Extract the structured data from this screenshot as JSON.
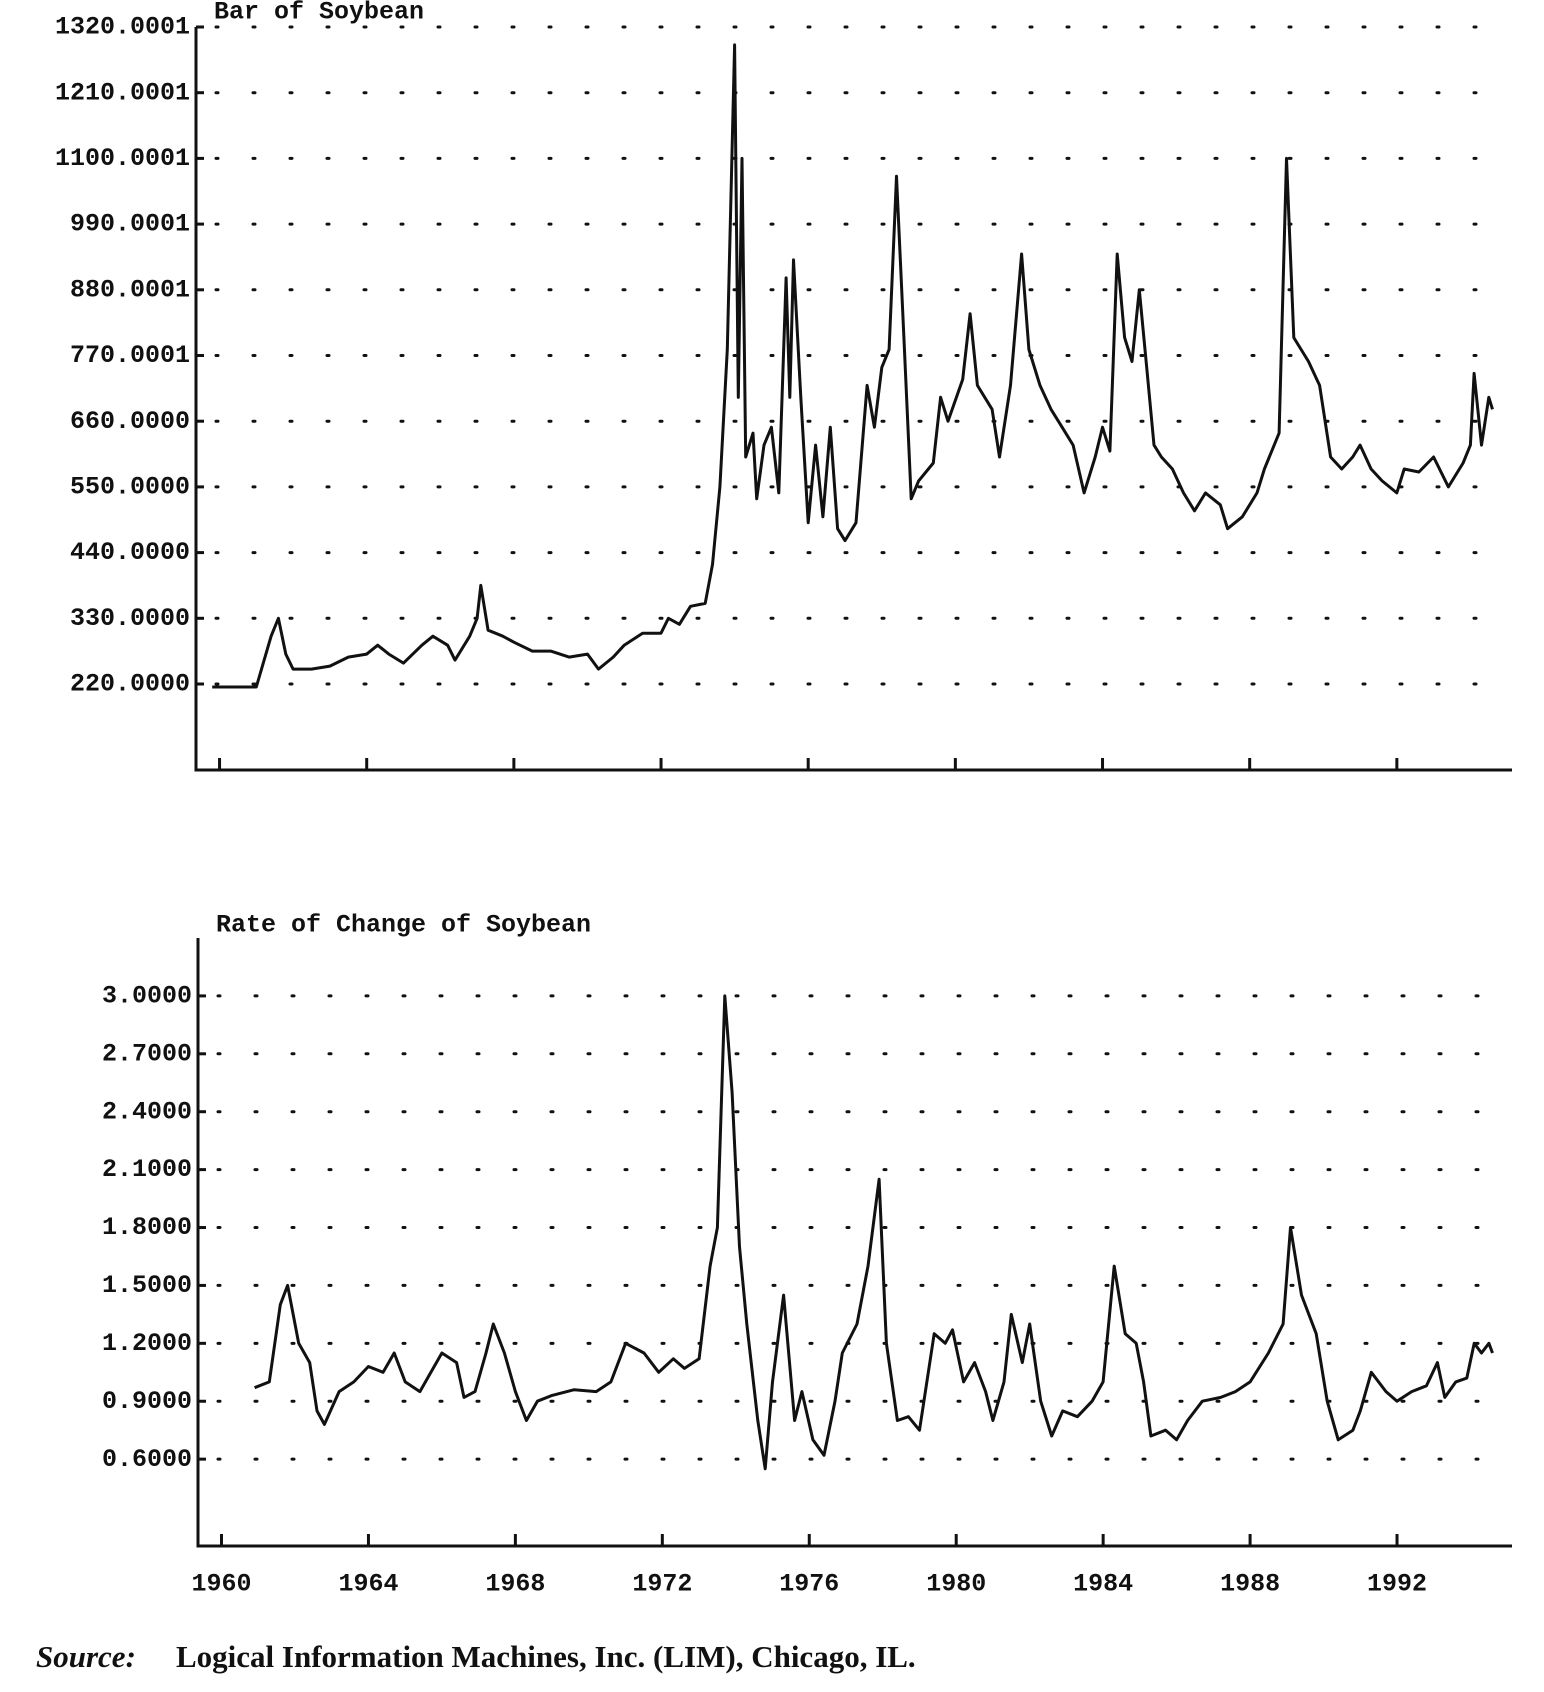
{
  "chart_data": [
    {
      "type": "line",
      "title": "Bar of Soybean",
      "xlim": [
        1959.36,
        1995.13
      ],
      "ylim": [
        76,
        1320
      ],
      "grid": true,
      "yticks": [
        {
          "value": 220,
          "label": "220.0000"
        },
        {
          "value": 330,
          "label": "330.0000"
        },
        {
          "value": 440,
          "label": "440.0000"
        },
        {
          "value": 550,
          "label": "550.0000"
        },
        {
          "value": 660,
          "label": "660.0000"
        },
        {
          "value": 770.0001,
          "label": "770.0001"
        },
        {
          "value": 880.0001,
          "label": "880.0001"
        },
        {
          "value": 990.0001,
          "label": "990.0001"
        },
        {
          "value": 1100.0001,
          "label": "1100.0001"
        },
        {
          "value": 1210.0001,
          "label": "1210.0001"
        },
        {
          "value": 1320.0001,
          "label": "1320.0001"
        }
      ],
      "x": [
        1959.8,
        1961.0,
        1961.4,
        1961.6,
        1961.8,
        1962,
        1962.5,
        1963,
        1963.5,
        1964,
        1964.3,
        1964.6,
        1965,
        1965.5,
        1965.8,
        1966.2,
        1966.4,
        1966.8,
        1967,
        1967.1,
        1967.3,
        1967.7,
        1968,
        1968.5,
        1969,
        1969.5,
        1970,
        1970.3,
        1970.7,
        1971,
        1971.5,
        1972,
        1972.2,
        1972.5,
        1972.8,
        1973.2,
        1973.4,
        1973.6,
        1973.8,
        1974.0,
        1974.1,
        1974.2,
        1974.3,
        1974.5,
        1974.6,
        1974.8,
        1975.0,
        1975.2,
        1975.4,
        1975.5,
        1975.6,
        1975.8,
        1976.0,
        1976.2,
        1976.4,
        1976.6,
        1976.8,
        1977.0,
        1977.3,
        1977.6,
        1977.8,
        1978.0,
        1978.2,
        1978.4,
        1978.6,
        1978.8,
        1979.0,
        1979.4,
        1979.6,
        1979.8,
        1980.2,
        1980.4,
        1980.6,
        1981.0,
        1981.2,
        1981.5,
        1981.8,
        1982.0,
        1982.3,
        1982.6,
        1982.9,
        1983.2,
        1983.5,
        1983.8,
        1984.0,
        1984.2,
        1984.4,
        1984.6,
        1984.8,
        1985.0,
        1985.2,
        1985.4,
        1985.6,
        1985.9,
        1986.2,
        1986.5,
        1986.8,
        1987.2,
        1987.4,
        1987.8,
        1988.2,
        1988.4,
        1988.8,
        1989.0,
        1989.2,
        1989.6,
        1989.9,
        1990.2,
        1990.5,
        1990.8,
        1991.0,
        1991.3,
        1991.6,
        1992.0,
        1992.2,
        1992.6,
        1993.0,
        1993.4,
        1993.8,
        1994.0,
        1994.1,
        1994.3,
        1994.5,
        1994.6
      ],
      "series": [
        {
          "color": "#111111",
          "values": [
            215,
            215,
            300,
            330,
            270,
            245,
            245,
            250,
            265,
            270,
            285,
            270,
            255,
            285,
            300,
            285,
            260,
            300,
            330,
            385,
            310,
            300,
            290,
            275,
            275,
            265,
            270,
            245,
            265,
            285,
            305,
            305,
            330,
            320,
            350,
            355,
            420,
            550,
            780,
            1290,
            700,
            1100,
            600,
            640,
            530,
            620,
            650,
            540,
            900,
            700,
            930,
            700,
            490,
            620,
            500,
            650,
            480,
            460,
            490,
            720,
            650,
            750,
            780,
            1070,
            800,
            530,
            560,
            590,
            700,
            660,
            730,
            840,
            720,
            680,
            600,
            720,
            940,
            780,
            720,
            680,
            650,
            620,
            540,
            600,
            650,
            610,
            940,
            800,
            760,
            880,
            750,
            620,
            600,
            580,
            540,
            510,
            540,
            520,
            480,
            500,
            540,
            580,
            640,
            1100,
            800,
            760,
            720,
            600,
            580,
            600,
            620,
            580,
            560,
            540,
            580,
            575,
            600,
            550,
            590,
            620,
            740,
            620,
            700,
            680
          ]
        }
      ]
    },
    {
      "type": "line",
      "title": "Rate of Change of Soybean",
      "xlim": [
        1959.36,
        1995.13
      ],
      "ylim": [
        0.15,
        3.3
      ],
      "grid": true,
      "xticks": [
        1960,
        1964,
        1968,
        1972,
        1976,
        1980,
        1984,
        1988,
        1992
      ],
      "yticks": [
        {
          "value": 0.6,
          "label": "0.6000"
        },
        {
          "value": 0.9,
          "label": "0.9000"
        },
        {
          "value": 1.2,
          "label": "1.2000"
        },
        {
          "value": 1.5,
          "label": "1.5000"
        },
        {
          "value": 1.8,
          "label": "1.8000"
        },
        {
          "value": 2.1,
          "label": "2.1000"
        },
        {
          "value": 2.4,
          "label": "2.4000"
        },
        {
          "value": 2.7,
          "label": "2.7000"
        },
        {
          "value": 3.0,
          "label": "3.0000"
        }
      ],
      "x": [
        1960.9,
        1961.3,
        1961.6,
        1961.8,
        1962.1,
        1962.4,
        1962.6,
        1962.8,
        1963.2,
        1963.6,
        1964.0,
        1964.4,
        1964.7,
        1965.0,
        1965.4,
        1965.7,
        1966.0,
        1966.4,
        1966.6,
        1966.9,
        1967.2,
        1967.4,
        1967.7,
        1968.0,
        1968.3,
        1968.6,
        1969.0,
        1969.6,
        1970.2,
        1970.6,
        1971.0,
        1971.5,
        1971.9,
        1972.3,
        1972.6,
        1973.0,
        1973.3,
        1973.5,
        1973.7,
        1973.9,
        1974.1,
        1974.3,
        1974.6,
        1974.8,
        1975.0,
        1975.3,
        1975.6,
        1975.8,
        1976.1,
        1976.4,
        1976.7,
        1976.9,
        1977.3,
        1977.6,
        1977.9,
        1978.1,
        1978.4,
        1978.7,
        1979.0,
        1979.4,
        1979.7,
        1979.9,
        1980.2,
        1980.5,
        1980.8,
        1981.0,
        1981.3,
        1981.5,
        1981.8,
        1982.0,
        1982.3,
        1982.6,
        1982.9,
        1983.3,
        1983.7,
        1984.0,
        1984.3,
        1984.6,
        1984.9,
        1985.1,
        1985.3,
        1985.7,
        1986.0,
        1986.3,
        1986.7,
        1987.2,
        1987.6,
        1988.0,
        1988.5,
        1988.9,
        1989.1,
        1989.4,
        1989.8,
        1990.1,
        1990.4,
        1990.8,
        1991.0,
        1991.3,
        1991.7,
        1992.0,
        1992.4,
        1992.8,
        1993.1,
        1993.3,
        1993.6,
        1993.9,
        1994.1,
        1994.3,
        1994.5,
        1994.6
      ],
      "series": [
        {
          "color": "#111111",
          "values": [
            0.97,
            1.0,
            1.4,
            1.5,
            1.2,
            1.1,
            0.85,
            0.78,
            0.95,
            1.0,
            1.08,
            1.05,
            1.15,
            1.0,
            0.95,
            1.05,
            1.15,
            1.1,
            0.92,
            0.95,
            1.15,
            1.3,
            1.15,
            0.95,
            0.8,
            0.9,
            0.93,
            0.96,
            0.95,
            1.0,
            1.2,
            1.15,
            1.05,
            1.12,
            1.07,
            1.12,
            1.6,
            1.8,
            3.0,
            2.5,
            1.7,
            1.3,
            0.8,
            0.55,
            1.0,
            1.45,
            0.8,
            0.95,
            0.7,
            0.62,
            0.9,
            1.15,
            1.3,
            1.6,
            2.05,
            1.2,
            0.8,
            0.82,
            0.75,
            1.25,
            1.2,
            1.27,
            1.0,
            1.1,
            0.95,
            0.8,
            1.0,
            1.35,
            1.1,
            1.3,
            0.9,
            0.72,
            0.85,
            0.82,
            0.9,
            1.0,
            1.6,
            1.25,
            1.2,
            1.0,
            0.72,
            0.75,
            0.7,
            0.8,
            0.9,
            0.92,
            0.95,
            1.0,
            1.15,
            1.3,
            1.8,
            1.45,
            1.25,
            0.9,
            0.7,
            0.75,
            0.85,
            1.05,
            0.95,
            0.9,
            0.95,
            0.98,
            1.1,
            0.92,
            1.0,
            1.02,
            1.2,
            1.15,
            1.2,
            1.15
          ]
        }
      ]
    }
  ],
  "source_label": "Source:",
  "source_text": "Logical Information Machines, Inc. (LIM), Chicago, IL."
}
